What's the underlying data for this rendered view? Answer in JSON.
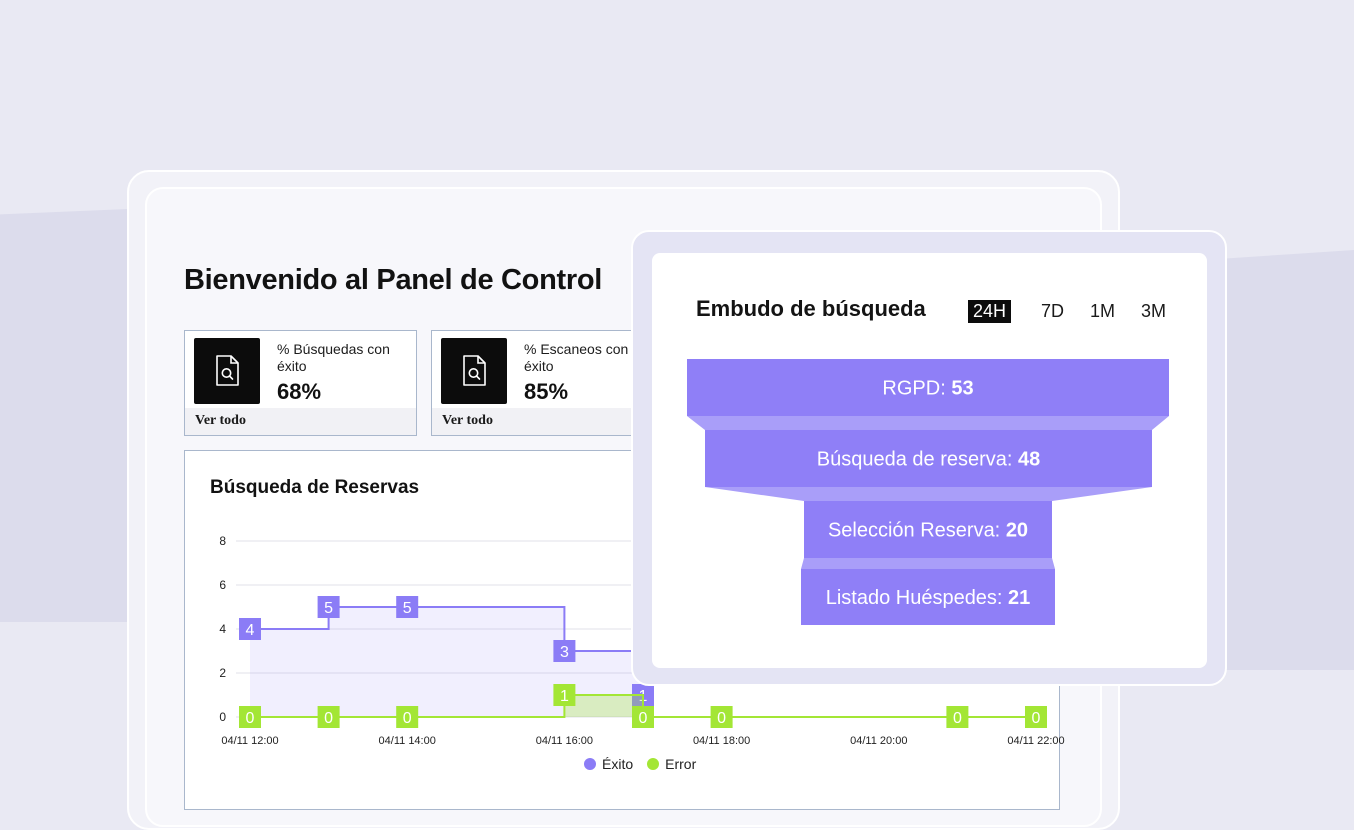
{
  "colors": {
    "accent_purple": "#8b7cf6",
    "accent_green": "#a3e635",
    "funnel_purple": "#8f7ff7"
  },
  "page": {
    "title": "Bienvenido al Panel de Control"
  },
  "stats": [
    {
      "label": "% Búsquedas con éxito",
      "value": "68%",
      "footer": "Ver todo",
      "icon": "search-document-icon"
    },
    {
      "label": "% Escaneos con éxito",
      "value": "85%",
      "footer": "Ver todo",
      "icon": "search-document-icon"
    }
  ],
  "reservations_chart": {
    "title": "Búsqueda de Reservas",
    "legend": [
      "Éxito",
      "Error"
    ]
  },
  "chart_data": {
    "type": "line",
    "title": "Búsqueda de Reservas",
    "x_tick_labels": [
      "04/11 12:00",
      "04/11 14:00",
      "04/11 16:00",
      "04/11 18:00",
      "04/11 20:00",
      "04/11 22:00"
    ],
    "y_ticks": [
      0,
      2,
      4,
      6,
      8
    ],
    "ylim": [
      0,
      8
    ],
    "step": true,
    "series": [
      {
        "name": "Éxito",
        "color": "#8b7cf6",
        "x": [
          "04/11 12:00",
          "04/11 13:00",
          "04/11 14:00",
          "04/11 16:00",
          "04/11 17:00"
        ],
        "values": [
          4,
          5,
          5,
          3,
          1
        ]
      },
      {
        "name": "Error",
        "color": "#a3e635",
        "x": [
          "04/11 12:00",
          "04/11 13:00",
          "04/11 14:00",
          "04/11 16:00",
          "04/11 17:00",
          "04/11 18:00",
          "04/11 21:00",
          "04/11 22:00"
        ],
        "values": [
          0,
          0,
          0,
          1,
          0,
          0,
          0,
          0
        ]
      }
    ]
  },
  "funnel": {
    "title": "Embudo de búsqueda",
    "ranges": [
      "24H",
      "7D",
      "1M",
      "3M"
    ],
    "active_range": "24H",
    "stages": [
      {
        "label": "RGPD:",
        "value": "53"
      },
      {
        "label": "Búsqueda de reserva:",
        "value": "48"
      },
      {
        "label": "Selección Reserva:",
        "value": "20"
      },
      {
        "label": "Listado Huéspedes:",
        "value": "21"
      }
    ]
  }
}
